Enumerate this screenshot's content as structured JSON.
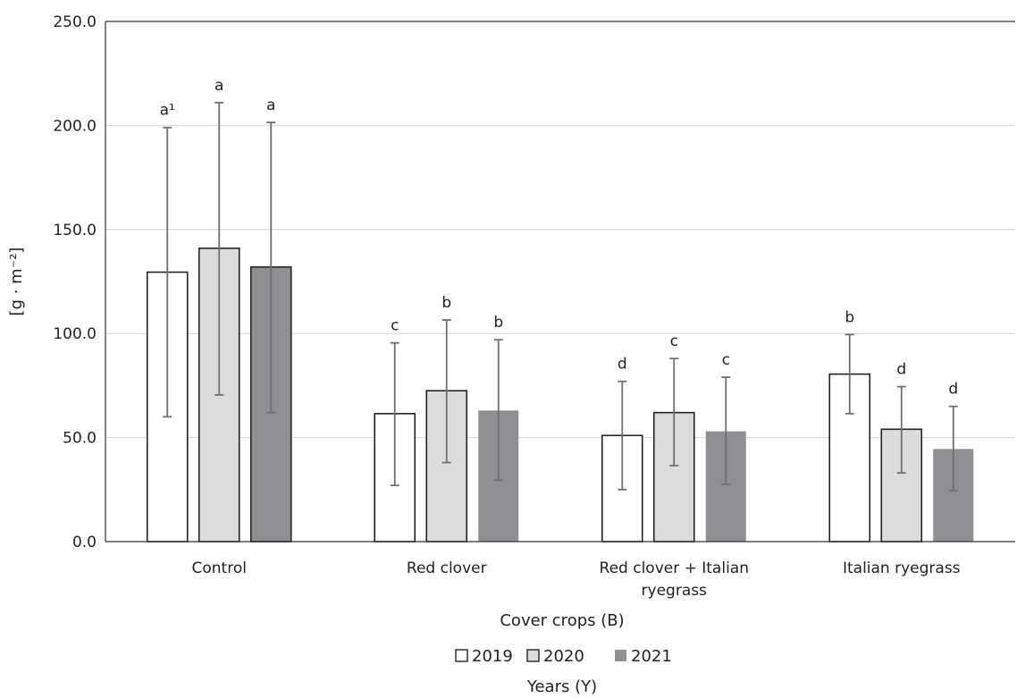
{
  "chart_data": {
    "type": "bar",
    "title": "",
    "ylabel": "[g · m⁻²]",
    "xlabel": "Cover crops (B)",
    "legend_title": "Years (Y)",
    "legend_position": "bottom",
    "grid": true,
    "ylim": [
      0,
      250
    ],
    "yticks": [
      "0.0",
      "50.0",
      "100.0",
      "150.0",
      "200.0",
      "250.0"
    ],
    "categories": [
      [
        "Control"
      ],
      [
        "Red clover"
      ],
      [
        "Red clover + Italian",
        "ryegrass"
      ],
      [
        "Italian ryegrass"
      ]
    ],
    "series": [
      {
        "name": "2019",
        "color": "#ffffff",
        "stroke": "#222222",
        "values": [
          129.5,
          61.5,
          51.0,
          80.5
        ],
        "error_low": [
          60.0,
          27.0,
          25.0,
          61.5
        ],
        "error_high": [
          199.0,
          95.5,
          77.0,
          99.5
        ],
        "labels": [
          "a¹",
          "c",
          "d",
          "b"
        ]
      },
      {
        "name": "2020",
        "color": "#dcdcde",
        "stroke": "#222222",
        "values": [
          141.0,
          72.5,
          62.0,
          54.0
        ],
        "error_low": [
          70.5,
          38.0,
          36.5,
          33.0
        ],
        "error_high": [
          211.0,
          106.5,
          88.0,
          74.5
        ],
        "labels": [
          "a",
          "b",
          "c",
          "d"
        ]
      },
      {
        "name": "2021",
        "color": "#8e8f93",
        "stroke": "#222222",
        "values": [
          132.0,
          63.0,
          53.0,
          44.5
        ],
        "error_low": [
          62.0,
          29.5,
          27.5,
          24.5
        ],
        "error_high": [
          201.5,
          97.0,
          79.0,
          65.0
        ],
        "labels": [
          "a",
          "b",
          "c",
          "d"
        ]
      }
    ]
  }
}
